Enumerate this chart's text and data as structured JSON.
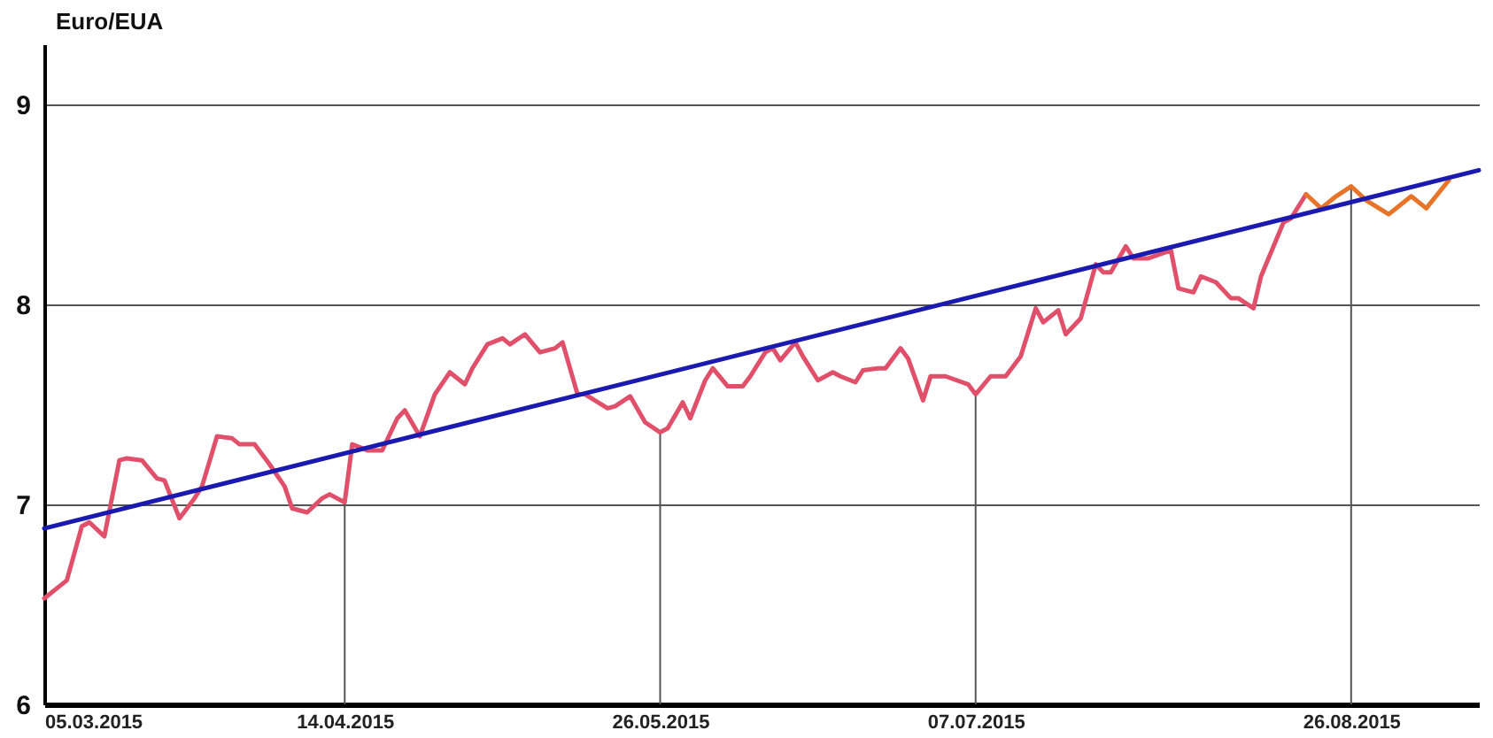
{
  "chart_data": {
    "type": "line",
    "ylabel": "Euro/EUA",
    "ylim": [
      6,
      9.3
    ],
    "yticks": [
      6,
      7,
      8,
      9
    ],
    "xlim": [
      "2015-03-05",
      "2015-09-12"
    ],
    "xticks": [
      {
        "value": "2015-03-05",
        "label": "05.03.2015"
      },
      {
        "value": "2015-04-14",
        "label": "14.04.2015"
      },
      {
        "value": "2015-05-26",
        "label": "26.05.2015"
      },
      {
        "value": "2015-07-07",
        "label": "07.07.2015"
      },
      {
        "value": "2015-08-26",
        "label": "26.08.2015"
      }
    ],
    "grid": "y",
    "ref_lines": [
      {
        "axis": "x",
        "value": "2015-04-14",
        "color": "#555555"
      },
      {
        "axis": "x",
        "value": "2015-05-26",
        "color": "#555555"
      },
      {
        "axis": "x",
        "value": "2015-07-07",
        "color": "#555555"
      },
      {
        "axis": "x",
        "value": "2015-08-26",
        "color": "#555555"
      }
    ],
    "series": [
      {
        "color": "#e0506a",
        "x": [
          "2015-03-05",
          "2015-03-07",
          "2015-03-08",
          "2015-03-10",
          "2015-03-11",
          "2015-03-13",
          "2015-03-15",
          "2015-03-16",
          "2015-03-18",
          "2015-03-20",
          "2015-03-21",
          "2015-03-23",
          "2015-03-25",
          "2015-03-26",
          "2015-03-28",
          "2015-03-30",
          "2015-03-31",
          "2015-04-02",
          "2015-04-04",
          "2015-04-06",
          "2015-04-07",
          "2015-04-09",
          "2015-04-11",
          "2015-04-12",
          "2015-04-14",
          "2015-04-15",
          "2015-04-17",
          "2015-04-19",
          "2015-04-21",
          "2015-04-22",
          "2015-04-24",
          "2015-04-26",
          "2015-04-28",
          "2015-04-30",
          "2015-05-01",
          "2015-05-03",
          "2015-05-05",
          "2015-05-06",
          "2015-05-08",
          "2015-05-10",
          "2015-05-12",
          "2015-05-13",
          "2015-05-15",
          "2015-05-16",
          "2015-05-19",
          "2015-05-20",
          "2015-05-22",
          "2015-05-24",
          "2015-05-26",
          "2015-05-27",
          "2015-05-29",
          "2015-05-30",
          "2015-06-01",
          "2015-06-02",
          "2015-06-04",
          "2015-06-06",
          "2015-06-07",
          "2015-06-09",
          "2015-06-10",
          "2015-06-11",
          "2015-06-13",
          "2015-06-14",
          "2015-06-16",
          "2015-06-18",
          "2015-06-19",
          "2015-06-21",
          "2015-06-22",
          "2015-06-24",
          "2015-06-25",
          "2015-06-27",
          "2015-06-28",
          "2015-06-30",
          "2015-07-01",
          "2015-07-03",
          "2015-07-06",
          "2015-07-07",
          "2015-07-09",
          "2015-07-11",
          "2015-07-13",
          "2015-07-15",
          "2015-07-16",
          "2015-07-18",
          "2015-07-19",
          "2015-07-21",
          "2015-07-23",
          "2015-07-24",
          "2015-07-25",
          "2015-07-27",
          "2015-07-28",
          "2015-07-30",
          "2015-08-02",
          "2015-08-03",
          "2015-08-05",
          "2015-08-06",
          "2015-08-08",
          "2015-08-10",
          "2015-08-11",
          "2015-08-13",
          "2015-08-14",
          "2015-08-17",
          "2015-08-18",
          "2015-08-20"
        ],
        "values": [
          6.53,
          6.59,
          6.62,
          6.89,
          6.91,
          6.84,
          7.22,
          7.23,
          7.22,
          7.13,
          7.12,
          6.93,
          7.03,
          7.09,
          7.34,
          7.33,
          7.3,
          7.3,
          7.2,
          7.09,
          6.98,
          6.96,
          7.03,
          7.05,
          7.01,
          7.3,
          7.27,
          7.27,
          7.43,
          7.47,
          7.34,
          7.55,
          7.66,
          7.6,
          7.68,
          7.8,
          7.83,
          7.8,
          7.85,
          7.76,
          7.78,
          7.81,
          7.55,
          7.55,
          7.48,
          7.49,
          7.54,
          7.41,
          7.36,
          7.38,
          7.51,
          7.43,
          7.62,
          7.68,
          7.59,
          7.59,
          7.64,
          7.76,
          7.78,
          7.72,
          7.81,
          7.74,
          7.62,
          7.66,
          7.64,
          7.61,
          7.67,
          7.68,
          7.68,
          7.78,
          7.73,
          7.52,
          7.64,
          7.64,
          7.6,
          7.55,
          7.64,
          7.64,
          7.74,
          7.98,
          7.91,
          7.97,
          7.85,
          7.93,
          8.2,
          8.16,
          8.16,
          8.29,
          8.23,
          8.23,
          8.27,
          8.08,
          8.06,
          8.14,
          8.11,
          8.03,
          8.03,
          7.98,
          8.14,
          8.41,
          8.43,
          8.55
        ]
      },
      {
        "color": "#e8742a",
        "x": [
          "2015-08-20",
          "2015-08-22",
          "2015-08-24",
          "2015-08-26",
          "2015-08-28",
          "2015-08-31",
          "2015-09-03",
          "2015-09-05",
          "2015-09-08"
        ],
        "values": [
          8.55,
          8.48,
          8.54,
          8.59,
          8.52,
          8.45,
          8.54,
          8.48,
          8.62
        ]
      },
      {
        "type": "line",
        "color": "#1a1ab0",
        "x": [
          "2015-03-05",
          "2015-09-12"
        ],
        "values": [
          6.88,
          8.67
        ]
      }
    ]
  }
}
